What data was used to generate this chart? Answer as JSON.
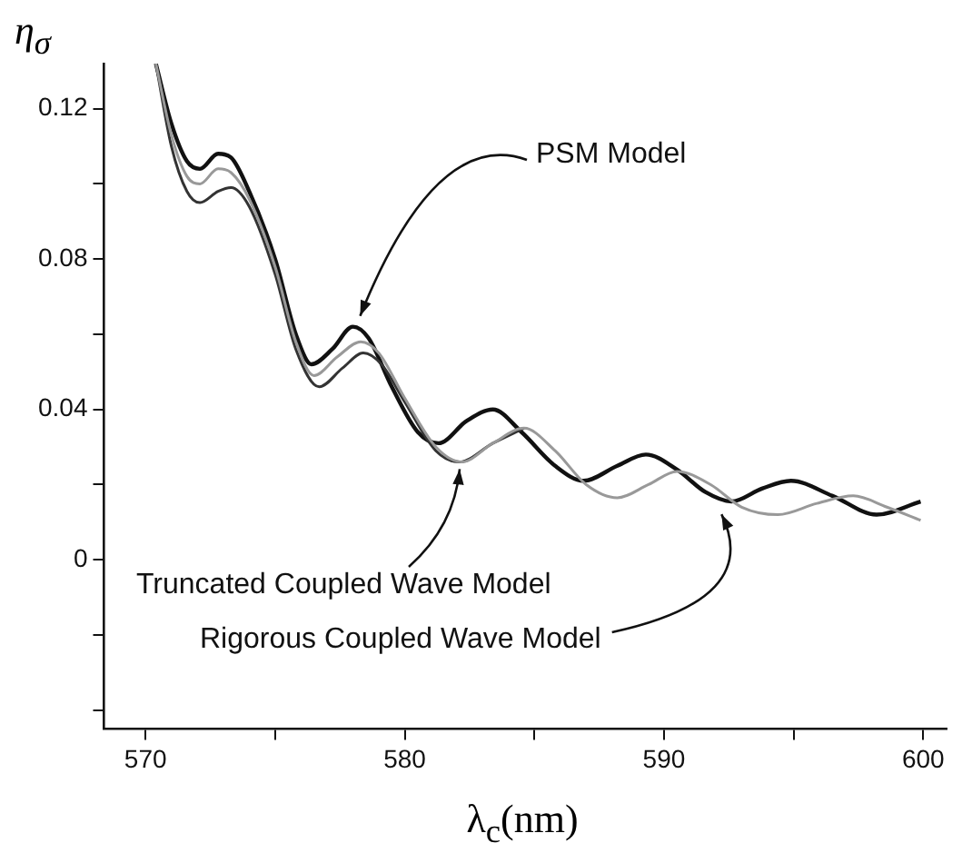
{
  "chart_data": {
    "type": "line",
    "xlabel": "λ$_{c}$(nm)",
    "ylabel": "η$_{σ}$",
    "xlim": [
      568.4,
      600.9
    ],
    "ylim": [
      -0.045,
      0.132
    ],
    "xticks": [
      570,
      {
        "value": 575,
        "label": null
      },
      580,
      {
        "value": 585,
        "label": null
      },
      590,
      {
        "value": 595,
        "label": null
      },
      600
    ],
    "yticks": [
      {
        "value": -0.04,
        "label": null
      },
      {
        "value": -0.02,
        "label": null
      },
      0,
      {
        "value": 0.02,
        "label": null
      },
      0.04,
      {
        "value": 0.06,
        "label": null
      },
      0.08,
      {
        "value": 0.1,
        "label": null
      },
      0.12
    ],
    "grid": false,
    "legend": false,
    "marker": "none",
    "line_style": "solid",
    "series": [
      {
        "color": "#999999",
        "x": [
          570.4,
          571.0,
          571.6,
          572.1,
          572.8,
          573.3,
          574,
          575,
          575.8,
          576.5,
          577.4,
          578.3,
          579,
          580,
          581.2,
          582.2,
          583.4,
          584.6,
          585.8,
          587,
          588.2,
          589.4,
          590.5,
          591.8,
          593,
          594.4,
          595.9,
          597.3,
          598.6,
          599.9
        ],
        "values": [
          0.132,
          0.113,
          0.102,
          0.1,
          0.104,
          0.103,
          0.096,
          0.078,
          0.058,
          0.049,
          0.054,
          0.058,
          0.055,
          0.043,
          0.03,
          0.026,
          0.031,
          0.035,
          0.029,
          0.02,
          0.0165,
          0.02,
          0.0235,
          0.02,
          0.014,
          0.012,
          0.015,
          0.017,
          0.014,
          0.0105
        ]
      },
      {
        "color": "#333333",
        "x": [
          570.4,
          571.0,
          571.6,
          572.1,
          572.8,
          573.3,
          574,
          575,
          575.8,
          576.7,
          577.6,
          578.4,
          579.1,
          580,
          581.2,
          582.1,
          583.4,
          584.6
        ],
        "values": [
          0.132,
          0.11,
          0.098,
          0.095,
          0.098,
          0.099,
          0.094,
          0.076,
          0.056,
          0.046,
          0.051,
          0.055,
          0.052,
          0.042,
          0.029,
          0.026,
          0.031,
          0.035
        ]
      },
      {
        "color": "#111111",
        "x": [
          570.4,
          571.0,
          571.6,
          572.1,
          572.8,
          573.3,
          574,
          575,
          575.8,
          576.4,
          577.2,
          578,
          578.6,
          579.5,
          580.5,
          581.3,
          582.4,
          583.4,
          584.5,
          585.8,
          586.9,
          588.2,
          589.3,
          590.5,
          591.6,
          592.6,
          593.8,
          594.9,
          596.5,
          598.2,
          599.9
        ],
        "values": [
          0.132,
          0.116,
          0.106,
          0.104,
          0.108,
          0.107,
          0.098,
          0.08,
          0.06,
          0.052,
          0.056,
          0.062,
          0.059,
          0.046,
          0.034,
          0.031,
          0.037,
          0.04,
          0.034,
          0.025,
          0.021,
          0.025,
          0.028,
          0.024,
          0.018,
          0.0155,
          0.019,
          0.021,
          0.017,
          0.012,
          0.0155
        ]
      }
    ],
    "annotations": [
      {
        "text": "PSM Model",
        "x": 578,
        "y": 0.062
      },
      {
        "text": "Truncated Coupled Wave Model",
        "x": 582.4,
        "y": 0.027
      },
      {
        "text": "Rigorous Coupled Wave Model",
        "x": 592.5,
        "y": 0.015
      }
    ]
  }
}
